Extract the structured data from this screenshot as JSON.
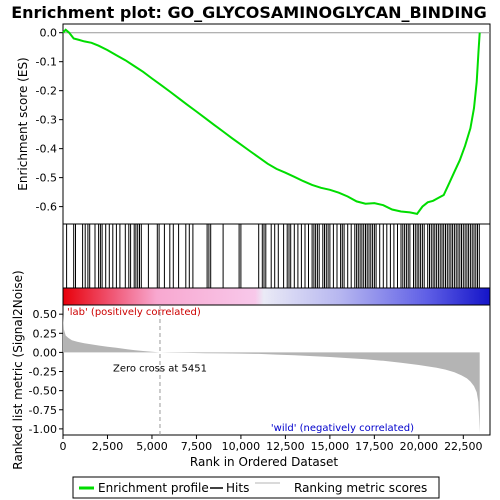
{
  "chart_data": {
    "type": "line",
    "title": "Enrichment plot: GO_GLYCOSAMINOGLYCAN_BINDING",
    "xlabel": "Rank in Ordered Dataset",
    "xlim": [
      0,
      24000
    ],
    "x_ticks": [
      "0",
      "2,500",
      "5,000",
      "7,500",
      "10,000",
      "12,500",
      "15,000",
      "17,500",
      "20,000",
      "22,500"
    ],
    "x_tick_values": [
      0,
      2500,
      5000,
      7500,
      10000,
      12500,
      15000,
      17500,
      20000,
      22500
    ],
    "es_panel": {
      "ylabel": "Enrichment score (ES)",
      "ylim": [
        -0.66,
        0.03
      ],
      "y_ticks": [
        "0.0",
        "-0.1",
        "-0.2",
        "-0.3",
        "-0.4",
        "-0.5",
        "-0.6"
      ],
      "y_tick_values": [
        0.0,
        -0.1,
        -0.2,
        -0.3,
        -0.4,
        -0.5,
        -0.6
      ],
      "series": [
        {
          "name": "Enrichment profile",
          "color": "#00dd00",
          "x": [
            0,
            150,
            350,
            600,
            900,
            1200,
            1600,
            2000,
            2500,
            3000,
            3500,
            4000,
            4500,
            5000,
            5500,
            6000,
            6500,
            7000,
            7500,
            8000,
            8500,
            9000,
            9500,
            10000,
            10500,
            11000,
            11500,
            12000,
            12500,
            13000,
            13500,
            14000,
            14500,
            15000,
            15500,
            16000,
            16500,
            17000,
            17500,
            18000,
            18500,
            19000,
            19500,
            19900,
            20200,
            20500,
            20800,
            21100,
            21400,
            21700,
            22000,
            22300,
            22600,
            22900,
            23100,
            23250,
            23350,
            23420
          ],
          "y": [
            0.0,
            0.01,
            0.0,
            -0.02,
            -0.025,
            -0.03,
            -0.035,
            -0.045,
            -0.06,
            -0.078,
            -0.095,
            -0.115,
            -0.135,
            -0.158,
            -0.18,
            -0.203,
            -0.226,
            -0.249,
            -0.272,
            -0.295,
            -0.318,
            -0.341,
            -0.364,
            -0.386,
            -0.408,
            -0.43,
            -0.452,
            -0.47,
            -0.483,
            -0.497,
            -0.512,
            -0.525,
            -0.535,
            -0.542,
            -0.552,
            -0.565,
            -0.582,
            -0.59,
            -0.588,
            -0.595,
            -0.61,
            -0.617,
            -0.62,
            -0.625,
            -0.6,
            -0.585,
            -0.58,
            -0.57,
            -0.56,
            -0.52,
            -0.48,
            -0.44,
            -0.39,
            -0.33,
            -0.26,
            -0.17,
            -0.07,
            0.0
          ]
        }
      ]
    },
    "hits_panel": {
      "legend_label": "Hits",
      "hit_ranks": [
        200,
        600,
        700,
        1100,
        1250,
        1400,
        1500,
        1800,
        2000,
        2100,
        2200,
        2400,
        2600,
        2800,
        3000,
        3200,
        3500,
        3700,
        3800,
        4000,
        4100,
        4200,
        4300,
        4400,
        4800,
        5300,
        5400,
        5700,
        6000,
        6200,
        6500,
        6900,
        7100,
        7300,
        8100,
        8200,
        8300,
        9000,
        9900,
        10000,
        11000,
        11200,
        11300,
        11400,
        11700,
        11900,
        12100,
        12400,
        12600,
        12700,
        12800,
        13000,
        13200,
        13400,
        13600,
        13800,
        14000,
        14100,
        14200,
        14300,
        14400,
        14600,
        14700,
        14800,
        14900,
        15000,
        15200,
        15400,
        15600,
        15700,
        15800,
        16000,
        16200,
        16400,
        16500,
        16600,
        16700,
        16800,
        16900,
        17000,
        17100,
        17200,
        17300,
        17400,
        17500,
        17600,
        17800,
        18000,
        18200,
        18400,
        18600,
        18800,
        19000,
        19100,
        19200,
        19300,
        19400,
        19500,
        19700,
        19800,
        19900,
        20000,
        20100,
        20200,
        20300,
        20500,
        20600,
        20700,
        20800,
        20900,
        21000,
        21100,
        21200,
        21300,
        21400,
        21500,
        21600,
        21700,
        21800,
        21900,
        22000,
        22100,
        22200,
        22300,
        22400,
        22500,
        22600,
        22700,
        22800,
        22900,
        23000,
        23100,
        23200,
        23300,
        23400
      ]
    },
    "metric_panel": {
      "ylabel": "Ranked list metric (Signal2Noise)",
      "legend_label": "Ranking metric scores",
      "ylim": [
        -1.08,
        0.62
      ],
      "y_ticks": [
        "0.50",
        "0.25",
        "0.00",
        "-0.25",
        "-0.50",
        "-0.75",
        "-1.00"
      ],
      "y_tick_values": [
        0.5,
        0.25,
        0.0,
        -0.25,
        -0.5,
        -0.75,
        -1.0
      ],
      "x": [
        0,
        50,
        150,
        300,
        500,
        800,
        1200,
        1600,
        2000,
        2500,
        3000,
        3500,
        4000,
        4500,
        5000,
        5451,
        6000,
        7000,
        8000,
        9000,
        10000,
        11000,
        12000,
        13000,
        14000,
        15000,
        16000,
        17000,
        18000,
        19000,
        20000,
        21000,
        21500,
        22000,
        22400,
        22700,
        22900,
        23100,
        23250,
        23350,
        23420
      ],
      "values": [
        0.5,
        0.3,
        0.22,
        0.19,
        0.16,
        0.14,
        0.12,
        0.105,
        0.09,
        0.075,
        0.06,
        0.045,
        0.03,
        0.018,
        0.008,
        0.0,
        -0.003,
        -0.006,
        -0.01,
        -0.013,
        -0.016,
        -0.02,
        -0.028,
        -0.038,
        -0.048,
        -0.06,
        -0.075,
        -0.09,
        -0.11,
        -0.135,
        -0.165,
        -0.2,
        -0.225,
        -0.26,
        -0.3,
        -0.34,
        -0.38,
        -0.44,
        -0.52,
        -0.65,
        -1.05
      ]
    },
    "zero_cross": {
      "rank": 5451,
      "label": "Zero cross at 5451"
    },
    "annotations": {
      "positive_label": "'lab' (positively correlated)",
      "negative_label": "'wild' (negatively correlated)"
    },
    "colors": {
      "profile": "#00dd00",
      "positive_annotation": "#cc0000",
      "negative_annotation": "#0000cc",
      "metric_fill": "#b4b4b4",
      "zero_line": "#999999"
    }
  },
  "legend": {
    "items": [
      {
        "label": "Enrichment profile",
        "color": "#00dd00"
      },
      {
        "label": "Hits",
        "color": "#000000"
      },
      {
        "label": "Ranking metric scores",
        "color": "#b4b4b4"
      }
    ]
  }
}
